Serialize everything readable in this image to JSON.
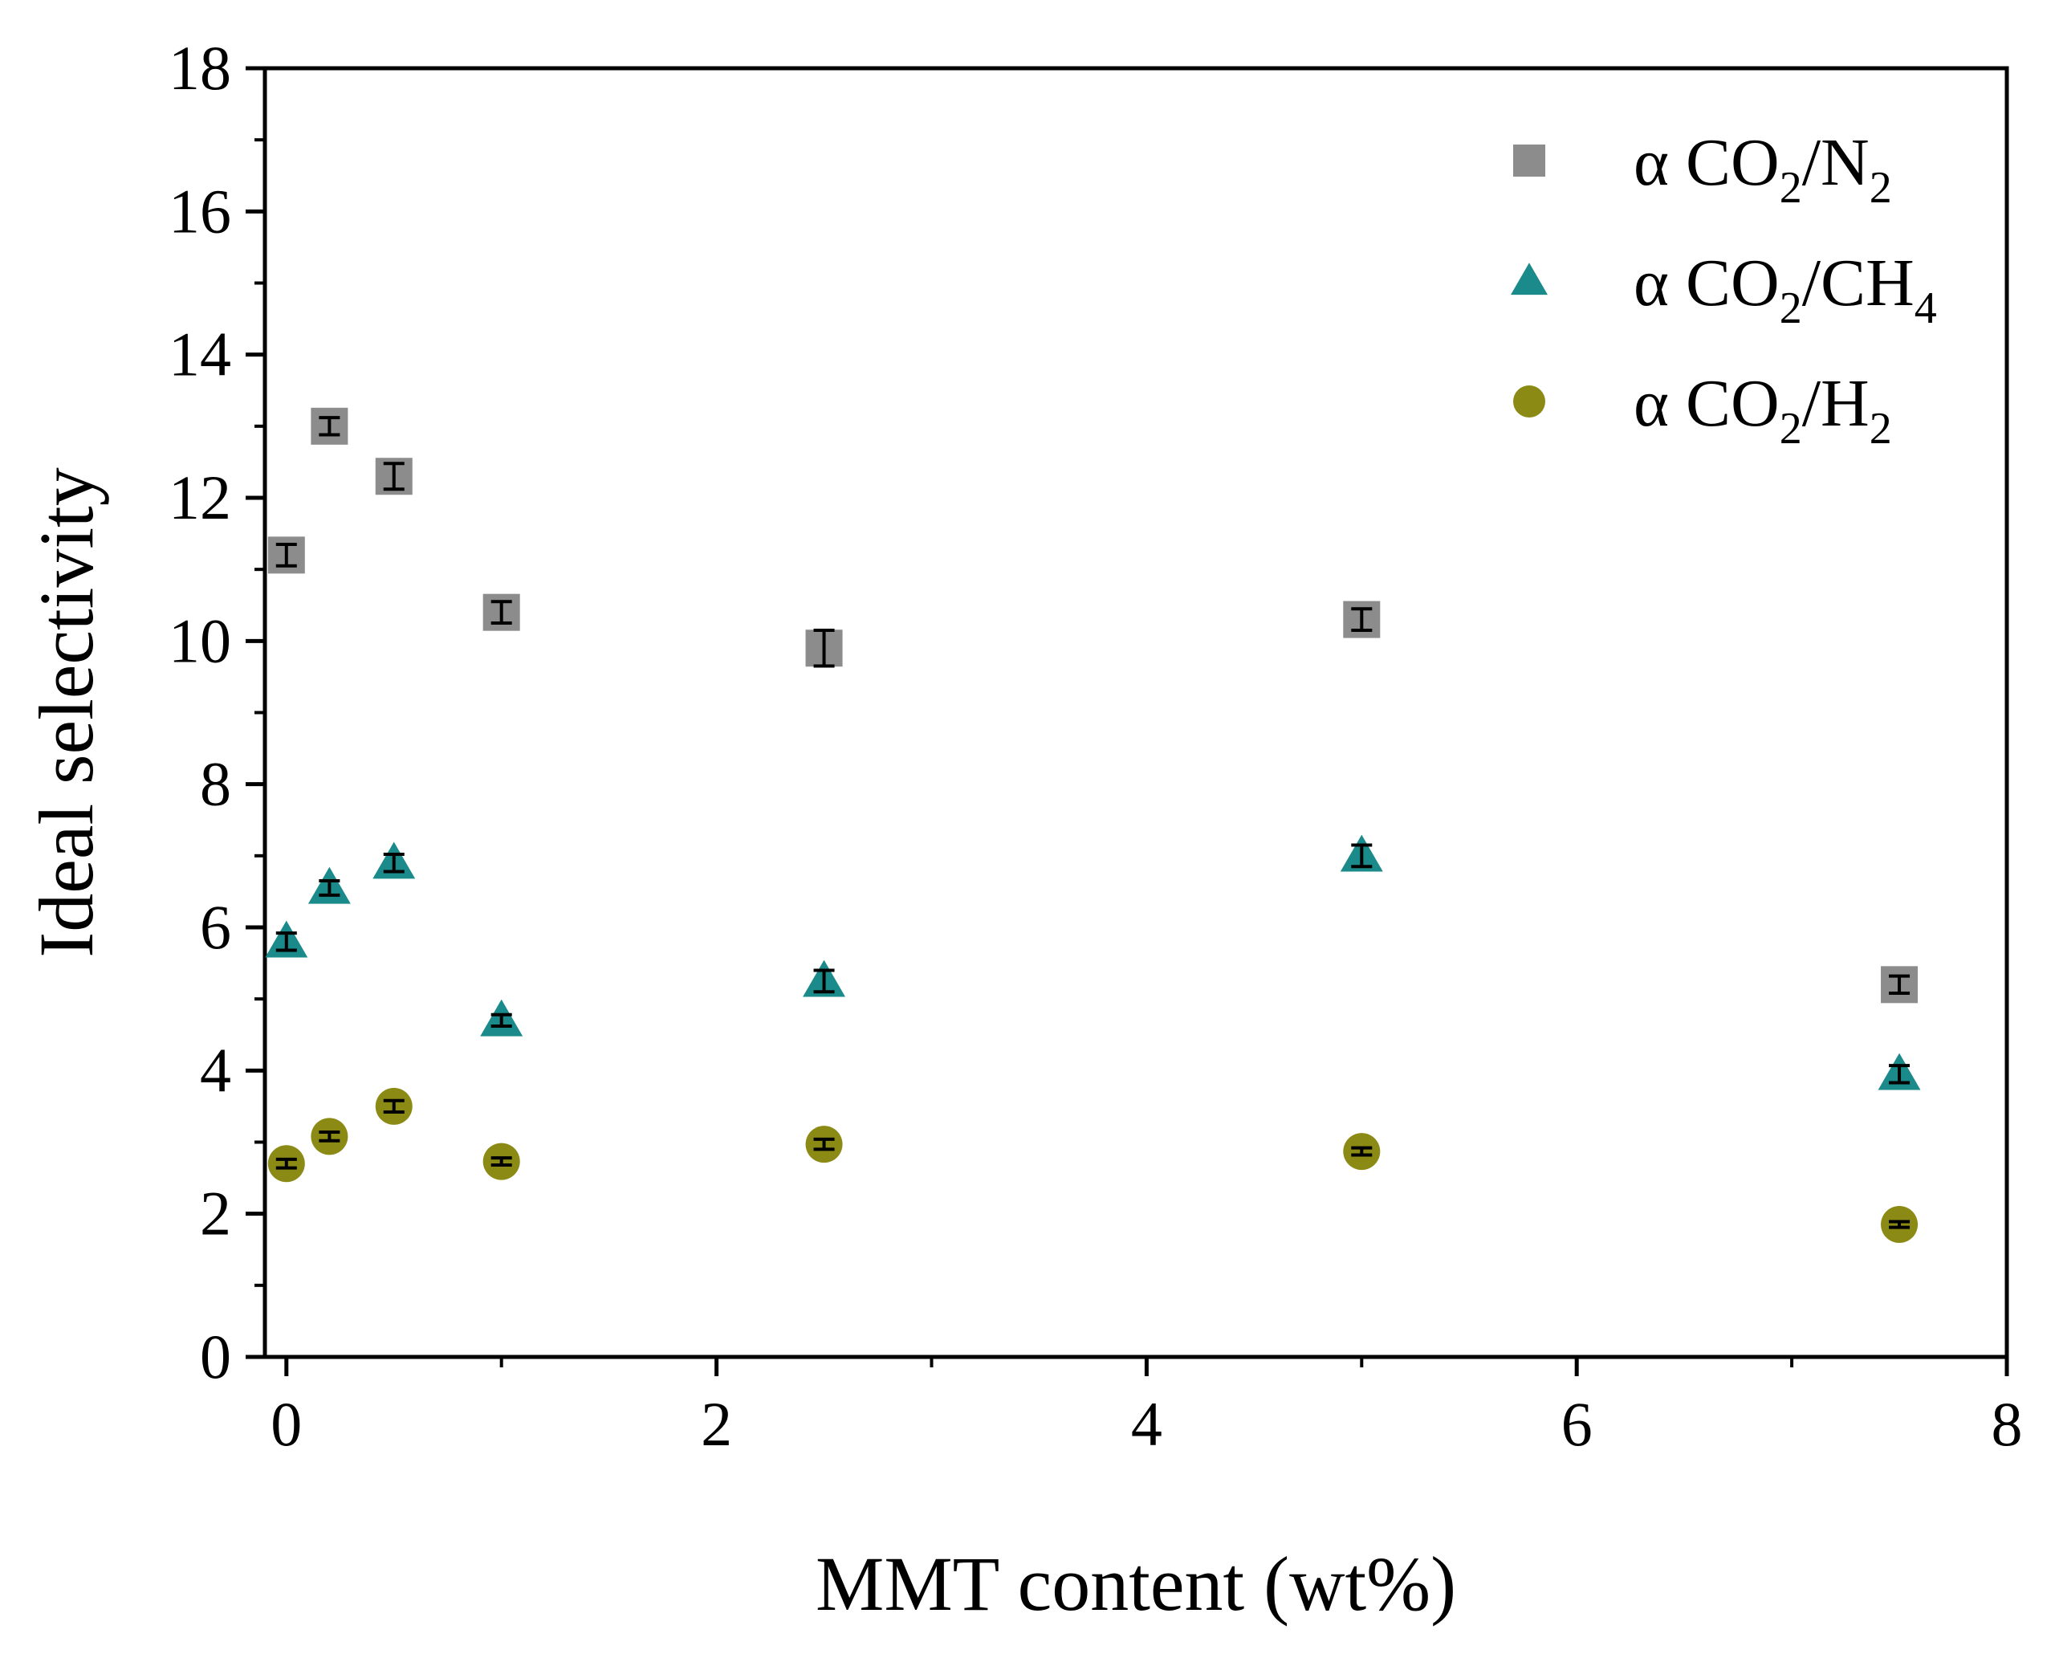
{
  "chart_data": {
    "type": "scatter",
    "title": "",
    "xlabel": "MMT content (wt%)",
    "ylabel": "Ideal selectivity",
    "xlim": [
      -0.1,
      8
    ],
    "ylim": [
      0,
      18
    ],
    "xticks": [
      0,
      2,
      4,
      6,
      8
    ],
    "xtick_labels": [
      "0",
      "2",
      "4",
      "6",
      "8"
    ],
    "yticks": [
      0,
      2,
      4,
      6,
      8,
      10,
      12,
      14,
      16,
      18
    ],
    "ytick_labels": [
      "0",
      "2",
      "4",
      "6",
      "8",
      "10",
      "12",
      "14",
      "16",
      "18"
    ],
    "x_minor_step": 1,
    "y_minor_step": 1,
    "grid": false,
    "legend_position": "top-right",
    "series": [
      {
        "name": "α CO2/N2",
        "label_parts": [
          [
            "α CO",
            ""
          ],
          [
            "2",
            "sub"
          ],
          [
            "/N",
            ""
          ],
          [
            "2",
            "sub"
          ]
        ],
        "marker": "square",
        "color": "#8c8c8c",
        "x": [
          0,
          0.2,
          0.5,
          1,
          2.5,
          5,
          7.5
        ],
        "y": [
          11.2,
          13.0,
          12.3,
          10.4,
          9.9,
          10.3,
          5.2
        ],
        "err": [
          0.15,
          0.12,
          0.18,
          0.15,
          0.25,
          0.15,
          0.12
        ]
      },
      {
        "name": "α CO2/CH4",
        "label_parts": [
          [
            "α CO",
            ""
          ],
          [
            "2",
            "sub"
          ],
          [
            "/CH",
            ""
          ],
          [
            "4",
            "sub"
          ]
        ],
        "marker": "triangle",
        "color": "#1a8a8a",
        "x": [
          0,
          0.2,
          0.5,
          1,
          2.5,
          5,
          7.5
        ],
        "y": [
          5.8,
          6.55,
          6.9,
          4.7,
          5.25,
          7.0,
          3.95
        ],
        "err": [
          0.12,
          0.1,
          0.12,
          0.08,
          0.15,
          0.15,
          0.12
        ]
      },
      {
        "name": "α CO2/H2",
        "label_parts": [
          [
            "α CO",
            ""
          ],
          [
            "2",
            "sub"
          ],
          [
            "/H",
            ""
          ],
          [
            "2",
            "sub"
          ]
        ],
        "marker": "circle",
        "color": "#8a8a14",
        "x": [
          0,
          0.2,
          0.5,
          1,
          2.5,
          5,
          7.5
        ],
        "y": [
          2.7,
          3.08,
          3.5,
          2.73,
          2.97,
          2.87,
          1.85
        ],
        "err": [
          0.06,
          0.06,
          0.08,
          0.05,
          0.07,
          0.05,
          0.04
        ]
      }
    ]
  }
}
